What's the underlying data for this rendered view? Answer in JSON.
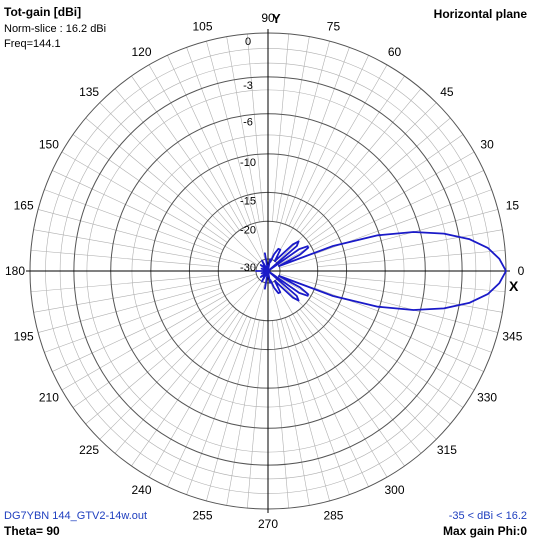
{
  "header": {
    "title": "Tot-gain [dBi]",
    "norm_slice": "Norm-slice : 16.2 dBi",
    "freq": "Freq=144.1",
    "plane": "Horizontal plane"
  },
  "footer": {
    "file": "DG7YBN 144_GTV2-14w.out",
    "theta": "Theta= 90",
    "range": "-35 < dBi < 16.2",
    "max_gain": "Max gain Phi:0"
  },
  "axes": {
    "y_label": "Y",
    "x_label": "X"
  },
  "colors": {
    "pattern": "#1a1ac8",
    "grid": "#b0b0b0",
    "axis": "#000000",
    "text_blue": "#1f3fbf"
  },
  "chart_data": {
    "type": "polar",
    "title": "Tot-gain [dBi]",
    "plane": "Horizontal plane",
    "radial_ticks_db": [
      0,
      -3,
      -6,
      -10,
      -15,
      -20,
      -30
    ],
    "radial_range_db": [
      -35,
      16.2
    ],
    "norm_dbi": 16.2,
    "angle_ticks_deg": [
      0,
      15,
      30,
      45,
      60,
      75,
      90,
      105,
      120,
      135,
      150,
      165,
      180,
      195,
      210,
      225,
      240,
      255,
      270,
      285,
      300,
      315,
      330,
      345
    ],
    "series": [
      {
        "angle_deg": [
          0,
          3,
          6,
          9,
          12,
          15,
          18,
          21,
          24,
          27,
          30,
          32,
          35,
          38,
          41,
          44,
          47,
          50,
          55,
          60,
          65,
          70,
          75,
          80,
          85,
          90,
          100,
          110,
          120,
          130,
          140,
          150,
          160,
          170,
          180
        ],
        "gain_db": [
          0,
          -0.4,
          -1.1,
          -2.3,
          -4.1,
          -6.6,
          -10.2,
          -16.4,
          -30,
          -23,
          -20.7,
          -20.6,
          -22.5,
          -35,
          -22.5,
          -21.5,
          -23,
          -27,
          -30,
          -26,
          -26,
          -28,
          -31,
          -30,
          -35,
          -35,
          -28,
          -35,
          -30,
          -33,
          -31,
          -35,
          -32,
          -35,
          -30
        ]
      }
    ]
  }
}
